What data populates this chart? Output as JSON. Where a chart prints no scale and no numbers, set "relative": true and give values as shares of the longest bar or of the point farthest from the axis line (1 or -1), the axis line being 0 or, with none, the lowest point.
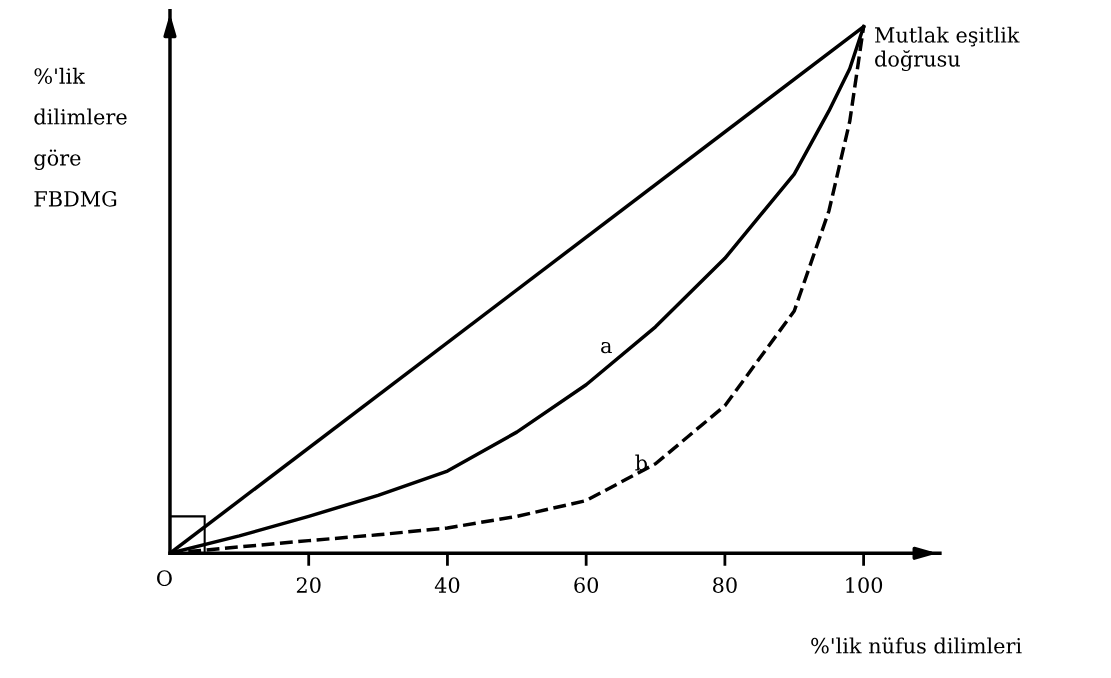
{
  "chart_data": {
    "type": "line",
    "relative": true,
    "xlabel": "%'lik nüfus dilimleri",
    "ylabel": "%'lik\ndilimlere\ngöre\nFBDMG",
    "x": [
      0,
      10,
      20,
      30,
      40,
      50,
      60,
      70,
      80,
      90,
      95,
      98,
      100
    ],
    "xlim": [
      0,
      111
    ],
    "xticks": [
      20,
      40,
      60,
      80,
      100
    ],
    "series": [
      {
        "name": "Mutlak eşitlik doğrusu",
        "color": "#000000",
        "line_style": "solid",
        "x": [
          0,
          100
        ],
        "values": [
          0,
          1
        ]
      },
      {
        "name": "a",
        "color": "#000000",
        "line_style": "solid",
        "values": [
          0,
          0.033,
          0.07,
          0.11,
          0.156,
          0.23,
          0.32,
          0.43,
          0.56,
          0.72,
          0.84,
          0.92,
          1
        ]
      },
      {
        "name": "b",
        "color": "#000000",
        "line_style": "dashed",
        "values": [
          0,
          0.012,
          0.024,
          0.035,
          0.048,
          0.07,
          0.1,
          0.17,
          0.28,
          0.46,
          0.65,
          0.82,
          1
        ]
      }
    ],
    "annotations": [
      {
        "text": "O",
        "x": 0,
        "y": 0
      }
    ],
    "grid": false,
    "legend": false,
    "marker": "none"
  }
}
